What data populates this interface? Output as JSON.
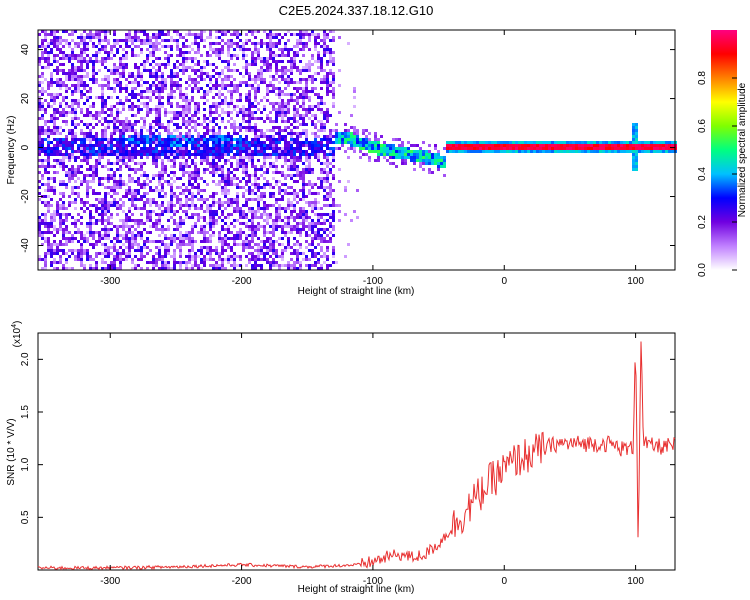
{
  "title": "C2E5.2024.337.18.12.G10",
  "chart_data": [
    {
      "type": "heatmap",
      "xlabel": "Height of straight line (km)",
      "ylabel": "Frequency (Hz)",
      "xlim": [
        -355,
        130
      ],
      "ylim": [
        -50,
        48
      ],
      "xticks": [
        -300,
        -200,
        -100,
        0,
        100
      ],
      "yticks": [
        -40,
        -20,
        0,
        20,
        40
      ],
      "grid": false,
      "colorbar": {
        "label": "Normalized spectral amplitude",
        "range": [
          0,
          1
        ],
        "ticks": [
          0.0,
          0.2,
          0.4,
          0.6,
          0.8
        ],
        "colors": [
          "#ffffff",
          "#c080ff",
          "#7000e0",
          "#0000ff",
          "#00c0ff",
          "#00ff80",
          "#80ff00",
          "#ffff00",
          "#ff8000",
          "#ff0000",
          "#ff0080"
        ]
      },
      "features": {
        "noise_region_x": [
          -355,
          -130
        ],
        "main_line_x": [
          -45,
          130
        ],
        "main_line_freq": 0,
        "spike_x": 100,
        "spike_freq_range": [
          -10,
          10
        ],
        "descending_trace": [
          [
            -120,
            4
          ],
          [
            -100,
            0
          ],
          [
            -80,
            -2
          ],
          [
            -60,
            -4
          ],
          [
            -45,
            -6
          ]
        ]
      }
    },
    {
      "type": "line",
      "xlabel": "Height of straight line (km)",
      "ylabel": "SNR (10 * V/V)",
      "yscale_label": "(x10",
      "yscale_exp": "4",
      "xlim": [
        -355,
        130
      ],
      "ylim": [
        0.0,
        2.25
      ],
      "xticks": [
        -300,
        -200,
        -100,
        0,
        100
      ],
      "yticks": [
        0.5,
        1.0,
        1.5,
        2.0
      ],
      "grid": false,
      "series": [
        {
          "color": "#e83030",
          "x": [
            -355,
            -300,
            -250,
            -200,
            -150,
            -110,
            -100,
            -90,
            -80,
            -70,
            -60,
            -50,
            -40,
            -30,
            -20,
            -10,
            0,
            10,
            20,
            30,
            40,
            50,
            60,
            70,
            80,
            90,
            98,
            100,
            102,
            104,
            106,
            110,
            120,
            130
          ],
          "y": [
            0.02,
            0.02,
            0.03,
            0.05,
            0.03,
            0.05,
            0.08,
            0.12,
            0.15,
            0.12,
            0.15,
            0.25,
            0.4,
            0.55,
            0.7,
            0.85,
            0.95,
            1.05,
            1.1,
            1.15,
            1.2,
            1.2,
            1.2,
            1.2,
            1.2,
            1.15,
            1.15,
            2.2,
            0.2,
            2.25,
            1.2,
            1.18,
            1.17,
            1.18
          ]
        }
      ]
    }
  ]
}
